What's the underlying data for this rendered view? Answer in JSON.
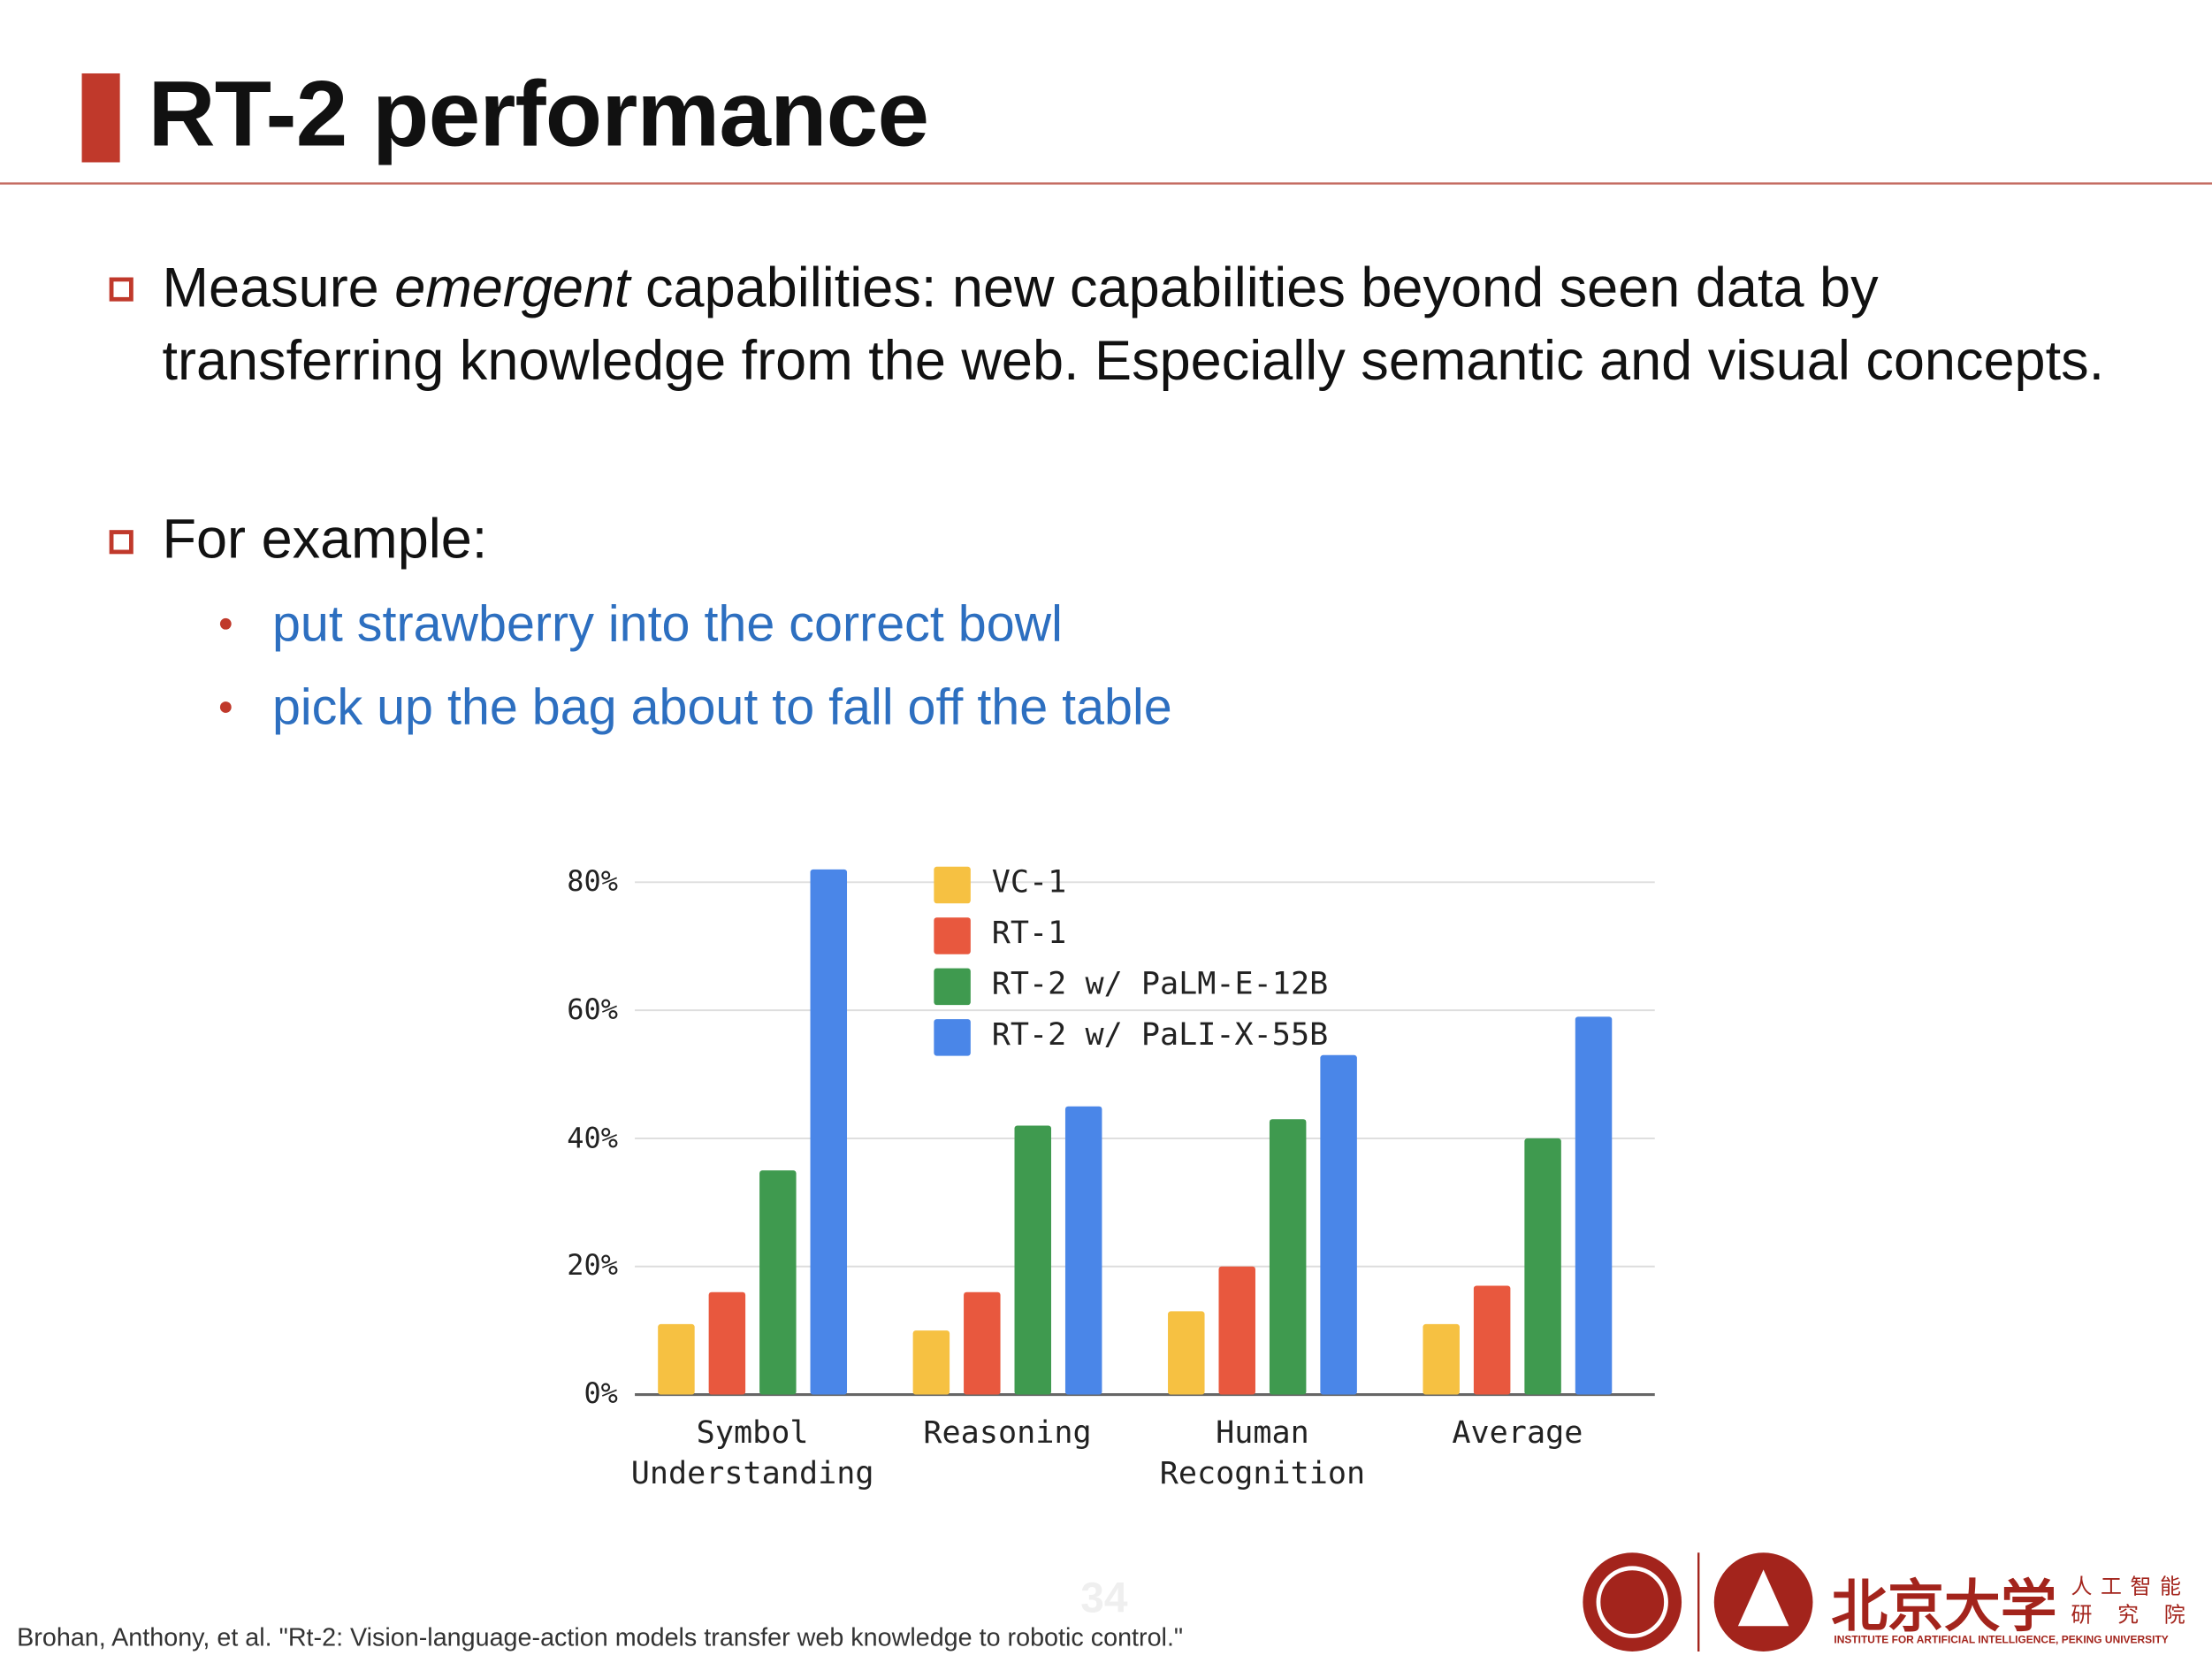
{
  "header": {
    "title": "RT-2 performance"
  },
  "bullets": [
    {
      "parts": [
        "Measure ",
        "emergent",
        " capabilities: new capabilities beyond seen data by transferring knowledge from the web. Especially semantic and visual concepts."
      ]
    },
    {
      "parts": [
        "For example:"
      ],
      "sub": [
        "put strawberry into the correct bowl",
        "pick up the bag about to fall off the table"
      ]
    }
  ],
  "chart_data": {
    "type": "bar",
    "categories": [
      "Symbol Understanding",
      "Reasoning",
      "Human Recognition",
      "Average"
    ],
    "series": [
      {
        "name": "VC-1",
        "color": "#f6c142",
        "values": [
          11,
          10,
          13,
          11
        ]
      },
      {
        "name": "RT-1",
        "color": "#e8583e",
        "values": [
          16,
          16,
          20,
          17
        ]
      },
      {
        "name": "RT-2 w/ PaLM-E-12B",
        "color": "#3f9a4f",
        "values": [
          35,
          42,
          43,
          40
        ]
      },
      {
        "name": "RT-2 w/ PaLI-X-55B",
        "color": "#4a86e8",
        "values": [
          82,
          45,
          53,
          59
        ]
      }
    ],
    "ylim": [
      0,
      80
    ],
    "yticks": [
      {
        "value": 0,
        "label": "0%"
      },
      {
        "value": 20,
        "label": "20%"
      },
      {
        "value": 40,
        "label": "40%"
      },
      {
        "value": 60,
        "label": "60%"
      },
      {
        "value": 80,
        "label": "80%"
      }
    ],
    "grid": true,
    "legend": "top-center"
  },
  "footer": {
    "citation": "Brohan, Anthony, et al. \"Rt-2: Vision-language-action models transfer web knowledge to robotic control.\"",
    "page_number": "34",
    "logo_name": "北京大学",
    "logo_line1": "人工智能",
    "logo_line2": "研究院",
    "logo_english": "INSTITUTE FOR ARTIFICIAL INTELLIGENCE, PEKING UNIVERSITY"
  }
}
